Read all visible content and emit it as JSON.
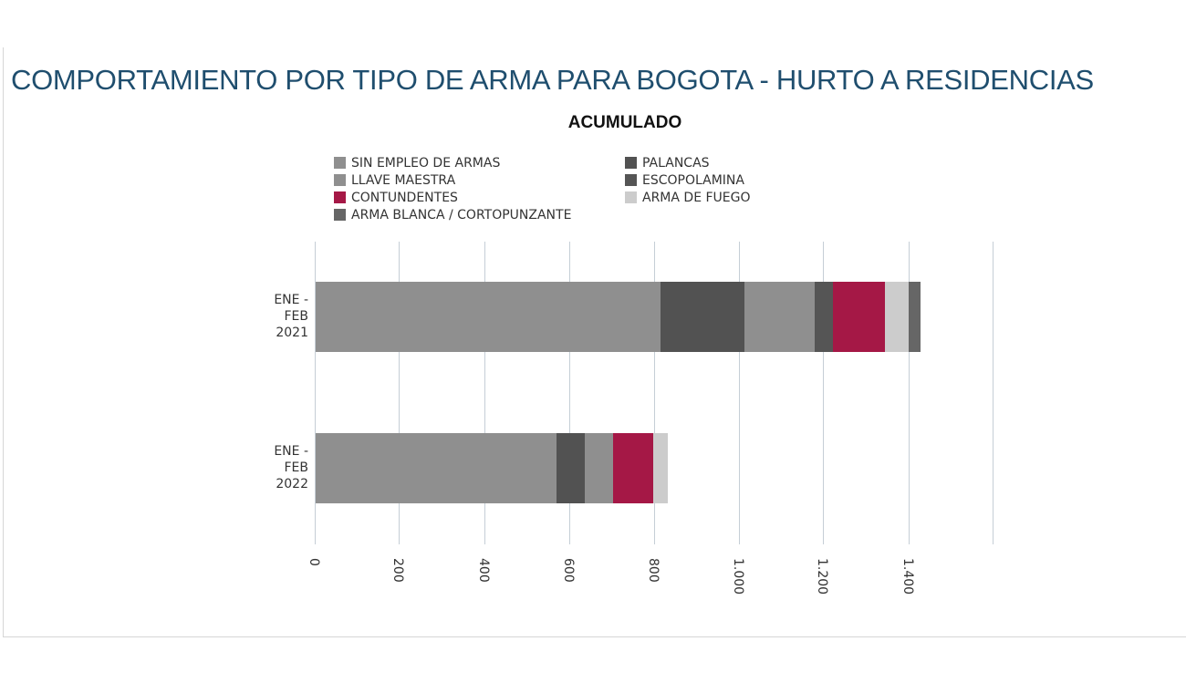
{
  "title": "COMPORTAMIENTO POR TIPO DE ARMA PARA BOGOTA - HURTO A RESIDENCIAS",
  "subtitle": "ACUMULADO",
  "legend": [
    {
      "label": "SIN EMPLEO DE ARMAS",
      "color": "#8f8f8f"
    },
    {
      "label": "LLAVE MAESTRA",
      "color": "#8f8f8f"
    },
    {
      "label": "CONTUNDENTES",
      "color": "#a51846"
    },
    {
      "label": "ARMA BLANCA / CORTOPUNZANTE",
      "color": "#666666"
    },
    {
      "label": "PALANCAS",
      "color": "#525252"
    },
    {
      "label": "ESCOPOLAMINA",
      "color": "#555555"
    },
    {
      "label": "ARMA DE FUEGO",
      "color": "#cccccc"
    }
  ],
  "categories": [
    {
      "line1": "ENE -",
      "line2": "FEB",
      "line3": "2021"
    },
    {
      "line1": "ENE -",
      "line2": "FEB",
      "line3": "2022"
    }
  ],
  "x_ticks": [
    "0",
    "200",
    "400",
    "600",
    "800",
    "1.000",
    "1.200",
    "1.400"
  ],
  "chart_data": {
    "type": "bar",
    "orientation": "horizontal",
    "stacked": true,
    "title": "COMPORTAMIENTO POR TIPO DE ARMA PARA BOGOTA - HURTO A RESIDENCIAS",
    "subtitle": "ACUMULADO",
    "categories": [
      "ENE - FEB 2021",
      "ENE - FEB 2022"
    ],
    "series": [
      {
        "name": "SIN EMPLEO DE ARMAS",
        "color": "#8f8f8f",
        "values": [
          814,
          568
        ]
      },
      {
        "name": "PALANCAS",
        "color": "#525252",
        "values": [
          198,
          67
        ]
      },
      {
        "name": "LLAVE MAESTRA",
        "color": "#8f8f8f",
        "values": [
          166,
          67
        ]
      },
      {
        "name": "ESCOPOLAMINA",
        "color": "#555555",
        "values": [
          43,
          0
        ]
      },
      {
        "name": "CONTUNDENTES",
        "color": "#a51846",
        "values": [
          123,
          95
        ]
      },
      {
        "name": "ARMA DE FUEGO",
        "color": "#cccccc",
        "values": [
          56,
          34
        ]
      },
      {
        "name": "ARMA BLANCA / CORTOPUNZANTE",
        "color": "#666666",
        "values": [
          28,
          0
        ]
      }
    ],
    "xlabel": "",
    "ylabel": "",
    "xlim": [
      0,
      1600
    ],
    "x_tick_labels": [
      "0",
      "200",
      "400",
      "600",
      "800",
      "1.000",
      "1.200",
      "1.400"
    ],
    "grid": true,
    "legend_position": "top"
  }
}
